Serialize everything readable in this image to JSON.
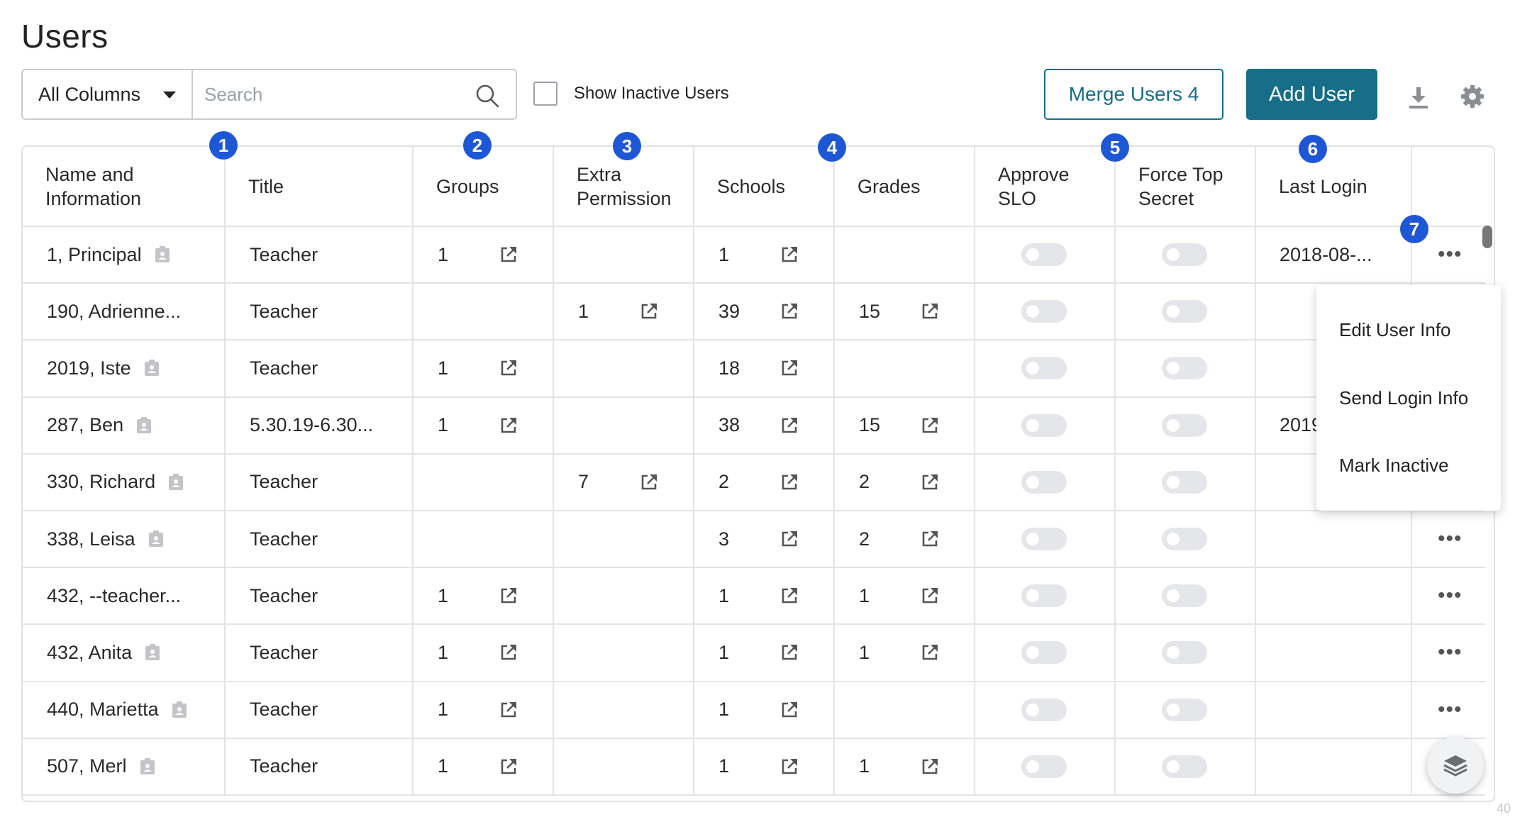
{
  "page": {
    "title": "Users"
  },
  "toolbar": {
    "column_select": "All Columns",
    "search_placeholder": "Search",
    "show_inactive_label": "Show Inactive Users",
    "merge_label": "Merge Users 4",
    "add_label": "Add User"
  },
  "columns": [
    {
      "label": "Name and\nInformation",
      "badge": "1"
    },
    {
      "label": "Title",
      "badge": ""
    },
    {
      "label": "Groups",
      "badge": "2"
    },
    {
      "label": "Extra\nPermission",
      "badge": "3"
    },
    {
      "label": "Schools",
      "badge": "4"
    },
    {
      "label": "Grades",
      "badge": ""
    },
    {
      "label": "Approve\nSLO",
      "badge": "5"
    },
    {
      "label": "Force Top\nSecret",
      "badge": ""
    },
    {
      "label": "Last Login",
      "badge": "6"
    },
    {
      "label": "",
      "badge": ""
    }
  ],
  "actions_badge": "7",
  "rows": [
    {
      "name": "1, Principal",
      "id_icon": true,
      "title": "Teacher",
      "groups": "1",
      "extra": "",
      "schools": "1",
      "grades": "",
      "last_login": "2018-08-...",
      "menu": true
    },
    {
      "name": "190, Adrienne...",
      "id_icon": false,
      "title": "Teacher",
      "groups": "",
      "extra": "1",
      "schools": "39",
      "grades": "15",
      "last_login": "",
      "menu": false
    },
    {
      "name": "2019, Iste",
      "id_icon": true,
      "title": "Teacher",
      "groups": "1",
      "extra": "",
      "schools": "18",
      "grades": "",
      "last_login": "",
      "menu": false
    },
    {
      "name": "287, Ben",
      "id_icon": true,
      "title": "5.30.19-6.30...",
      "groups": "1",
      "extra": "",
      "schools": "38",
      "grades": "15",
      "last_login": "2019",
      "menu": false
    },
    {
      "name": "330, Richard",
      "id_icon": true,
      "title": "Teacher",
      "groups": "",
      "extra": "7",
      "schools": "2",
      "grades": "2",
      "last_login": "",
      "menu": false
    },
    {
      "name": "338, Leisa",
      "id_icon": true,
      "title": "Teacher",
      "groups": "",
      "extra": "",
      "schools": "3",
      "grades": "2",
      "last_login": "",
      "menu": true
    },
    {
      "name": "432, --teacher...",
      "id_icon": false,
      "title": "Teacher",
      "groups": "1",
      "extra": "",
      "schools": "1",
      "grades": "1",
      "last_login": "",
      "menu": true
    },
    {
      "name": "432, Anita",
      "id_icon": true,
      "title": "Teacher",
      "groups": "1",
      "extra": "",
      "schools": "1",
      "grades": "1",
      "last_login": "",
      "menu": true
    },
    {
      "name": "440, Marietta",
      "id_icon": true,
      "title": "Teacher",
      "groups": "1",
      "extra": "",
      "schools": "1",
      "grades": "",
      "last_login": "",
      "menu": true
    },
    {
      "name": "507, Merl",
      "id_icon": true,
      "title": "Teacher",
      "groups": "1",
      "extra": "",
      "schools": "1",
      "grades": "1",
      "last_login": "",
      "menu": false
    }
  ],
  "row_menu": {
    "items": [
      "Edit User Info",
      "Send Login Info",
      "Mark Inactive"
    ]
  },
  "corner_text": "40",
  "colors": {
    "accent": "#176e88",
    "badge": "#1e57d6",
    "toggle_off": "#e4e6e9"
  }
}
